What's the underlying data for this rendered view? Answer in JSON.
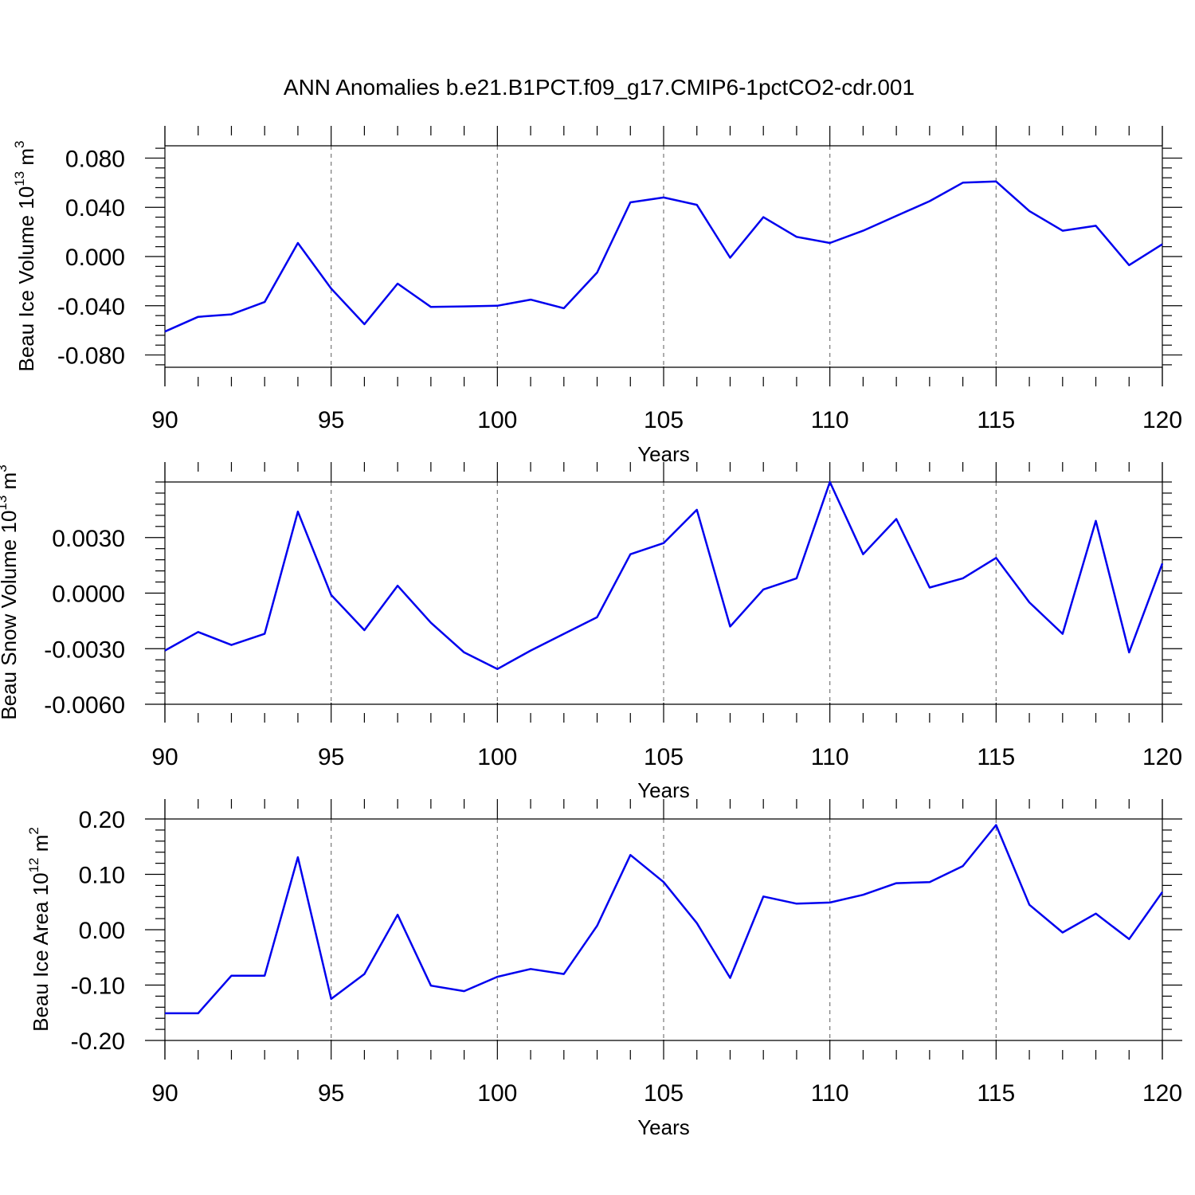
{
  "title": "ANN Anomalies b.e21.B1PCT.f09_g17.CMIP6-1pctCO2-cdr.001",
  "line_color": "#0000ee",
  "chart_data": [
    {
      "type": "line",
      "xlabel": "Years",
      "ylabel": {
        "base": "Beau Ice Volume 10",
        "exp1": "13",
        "mid": " m",
        "exp2": "3"
      },
      "xlim": [
        90,
        120
      ],
      "ylim": [
        -0.09,
        0.09
      ],
      "xticks": [
        90,
        95,
        100,
        105,
        110,
        115,
        120
      ],
      "xtick_labels": [
        "90",
        "95",
        "100",
        "105",
        "110",
        "115",
        "120"
      ],
      "yticks": [
        -0.08,
        -0.04,
        0.0,
        0.04,
        0.08
      ],
      "ytick_labels": [
        "-0.080",
        "-0.040",
        "0.000",
        "0.040",
        "0.080"
      ],
      "grid": "vertical dashed at major x ticks",
      "x": [
        90,
        91,
        92,
        93,
        94,
        95,
        96,
        97,
        98,
        99,
        100,
        101,
        102,
        103,
        104,
        105,
        106,
        107,
        108,
        109,
        110,
        111,
        112,
        113,
        114,
        115,
        116,
        117,
        118,
        119,
        120
      ],
      "y": [
        -0.061,
        -0.049,
        -0.047,
        -0.037,
        0.011,
        -0.026,
        -0.055,
        -0.022,
        -0.041,
        -0.0405,
        -0.04,
        -0.035,
        -0.042,
        -0.013,
        0.044,
        0.048,
        0.042,
        -0.001,
        0.032,
        0.016,
        0.011,
        0.021,
        0.033,
        0.045,
        0.06,
        0.061,
        0.037,
        0.021,
        0.025,
        -0.007,
        0.01
      ]
    },
    {
      "type": "line",
      "xlabel": "Years",
      "ylabel": {
        "base": "Beau Snow Volume 10",
        "exp1": "13",
        "mid": " m",
        "exp2": "3"
      },
      "xlim": [
        90,
        120
      ],
      "ylim": [
        -0.006,
        0.006
      ],
      "xticks": [
        90,
        95,
        100,
        105,
        110,
        115,
        120
      ],
      "xtick_labels": [
        "90",
        "95",
        "100",
        "105",
        "110",
        "115",
        "120"
      ],
      "yticks": [
        -0.006,
        -0.003,
        0.0,
        0.003
      ],
      "ytick_labels": [
        "-0.0060",
        "-0.0030",
        "0.0000",
        "0.0030"
      ],
      "grid": "vertical dashed at major x ticks",
      "x": [
        90,
        91,
        92,
        93,
        94,
        95,
        96,
        97,
        98,
        99,
        100,
        101,
        102,
        103,
        104,
        105,
        106,
        107,
        108,
        109,
        110,
        111,
        112,
        113,
        114,
        115,
        116,
        117,
        118,
        119,
        120
      ],
      "y": [
        -0.0031,
        -0.0021,
        -0.0028,
        -0.0022,
        0.0044,
        -0.0001,
        -0.002,
        0.0004,
        -0.0016,
        -0.0032,
        -0.0041,
        -0.0031,
        -0.0022,
        -0.0013,
        0.0021,
        0.0027,
        0.0045,
        -0.0018,
        0.0002,
        0.0008,
        0.006,
        0.0021,
        0.004,
        0.0003,
        0.0008,
        0.0019,
        -0.0005,
        -0.0022,
        0.0039,
        -0.0032,
        0.0016
      ]
    },
    {
      "type": "line",
      "xlabel": "Years",
      "ylabel": {
        "base": "Beau Ice Area 10",
        "exp1": "12",
        "mid": " m",
        "exp2": "2"
      },
      "xlim": [
        90,
        120
      ],
      "ylim": [
        -0.2,
        0.2
      ],
      "xticks": [
        90,
        95,
        100,
        105,
        110,
        115,
        120
      ],
      "xtick_labels": [
        "90",
        "95",
        "100",
        "105",
        "110",
        "115",
        "120"
      ],
      "yticks": [
        -0.2,
        -0.1,
        0.0,
        0.1,
        0.2
      ],
      "ytick_labels": [
        "-0.20",
        "-0.10",
        "0.00",
        "0.10",
        "0.20"
      ],
      "grid": "vertical dashed at major x ticks",
      "x": [
        90,
        91,
        92,
        93,
        94,
        95,
        96,
        97,
        98,
        99,
        100,
        101,
        102,
        103,
        104,
        105,
        106,
        107,
        108,
        109,
        110,
        111,
        112,
        113,
        114,
        115,
        116,
        117,
        118,
        119,
        120
      ],
      "y": [
        -0.151,
        -0.151,
        -0.083,
        -0.083,
        0.131,
        -0.125,
        -0.08,
        0.027,
        -0.101,
        -0.111,
        -0.085,
        -0.071,
        -0.08,
        0.007,
        0.135,
        0.086,
        0.012,
        -0.087,
        0.06,
        0.047,
        0.049,
        0.063,
        0.084,
        0.086,
        0.115,
        0.189,
        0.045,
        -0.005,
        0.029,
        -0.017,
        0.068
      ]
    }
  ]
}
